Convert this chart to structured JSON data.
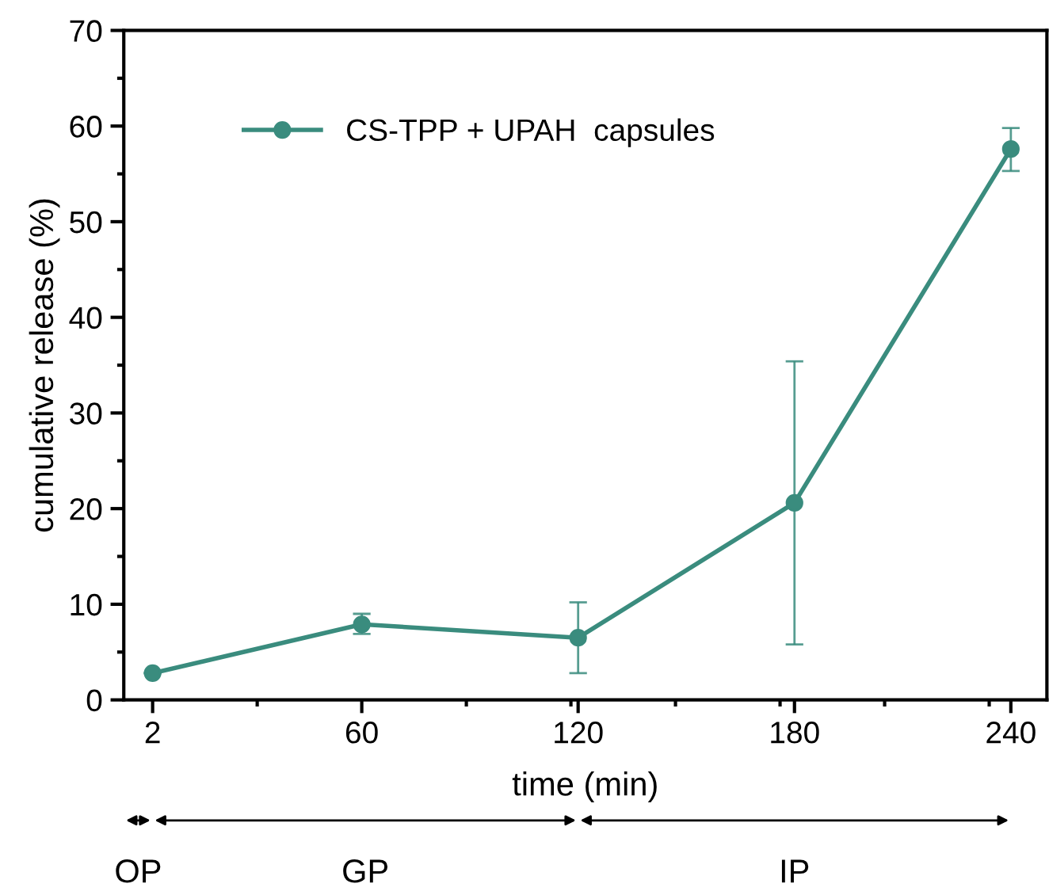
{
  "chart_data": {
    "type": "line",
    "xlabel": "time (min)",
    "ylabel": "cumulative release (%)",
    "x": [
      2,
      60,
      120,
      180,
      240
    ],
    "series": [
      {
        "name": "CS-TPP + UPAH  capsules",
        "color": "#3a8c7e",
        "values": [
          2.8,
          7.9,
          6.5,
          20.6,
          57.6
        ],
        "errors": [
          null,
          [
            6.9,
            9.0
          ],
          [
            2.8,
            10.2
          ],
          [
            5.8,
            35.4
          ],
          [
            55.3,
            59.8
          ]
        ]
      }
    ],
    "xlim": [
      -6,
      250
    ],
    "xticks": [
      2,
      60,
      120,
      180,
      240
    ],
    "ylim": [
      0,
      70
    ],
    "yticks": [
      0,
      10,
      20,
      30,
      40,
      50,
      60,
      70
    ],
    "marker": "circle",
    "line_style": "solid",
    "grid": false,
    "legend": "top left",
    "annotations": [
      "OP",
      "GP",
      "IP"
    ]
  }
}
